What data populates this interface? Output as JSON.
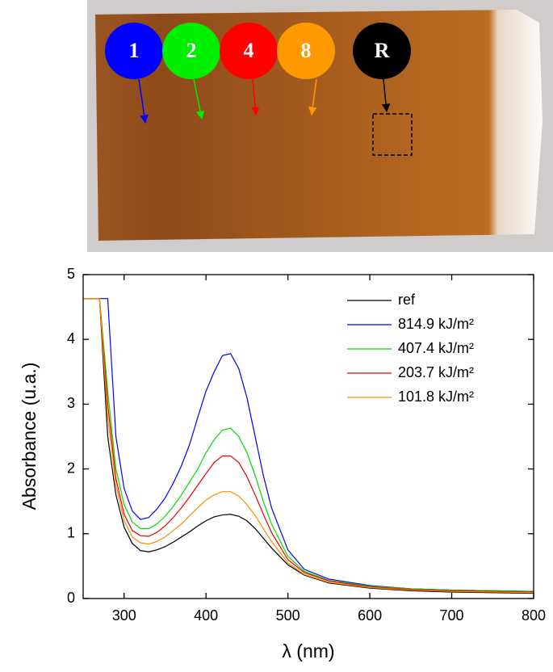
{
  "photo": {
    "markers": [
      "1",
      "2",
      "4",
      "8",
      "R"
    ]
  },
  "chart_data": {
    "type": "line",
    "xlabel": "λ (nm)",
    "ylabel": "Absorbance (u.a.)",
    "x": [
      250,
      270,
      280,
      290,
      300,
      310,
      320,
      330,
      340,
      350,
      360,
      370,
      380,
      390,
      400,
      410,
      420,
      430,
      440,
      450,
      460,
      470,
      480,
      500,
      520,
      550,
      600,
      650,
      700,
      750,
      800
    ],
    "series": [
      {
        "name": "ref",
        "color": "#000000",
        "values": [
          4.63,
          4.63,
          2.5,
          1.6,
          1.1,
          0.85,
          0.74,
          0.72,
          0.75,
          0.8,
          0.87,
          0.95,
          1.03,
          1.12,
          1.2,
          1.26,
          1.29,
          1.3,
          1.27,
          1.2,
          1.08,
          0.93,
          0.78,
          0.52,
          0.36,
          0.24,
          0.16,
          0.12,
          0.1,
          0.09,
          0.08
        ]
      },
      {
        "name": "814.9 kJ/m²",
        "color": "#0000ff",
        "values": [
          4.63,
          4.63,
          4.63,
          2.5,
          1.7,
          1.35,
          1.22,
          1.25,
          1.38,
          1.55,
          1.78,
          2.05,
          2.38,
          2.8,
          3.2,
          3.5,
          3.75,
          3.78,
          3.55,
          3.1,
          2.5,
          1.9,
          1.4,
          0.75,
          0.45,
          0.3,
          0.2,
          0.15,
          0.13,
          0.12,
          0.11
        ]
      },
      {
        "name": "407.4 kJ/m²",
        "color": "#00dd00",
        "values": [
          4.63,
          4.63,
          3.2,
          2.0,
          1.45,
          1.18,
          1.08,
          1.08,
          1.15,
          1.27,
          1.42,
          1.6,
          1.8,
          2.0,
          2.25,
          2.45,
          2.6,
          2.63,
          2.5,
          2.25,
          1.9,
          1.5,
          1.15,
          0.65,
          0.42,
          0.28,
          0.19,
          0.15,
          0.13,
          0.12,
          0.11
        ]
      },
      {
        "name": "203.7 kJ/m²",
        "color": "#ee0000",
        "values": [
          4.63,
          4.63,
          3.0,
          1.85,
          1.3,
          1.05,
          0.97,
          0.96,
          1.02,
          1.12,
          1.25,
          1.4,
          1.57,
          1.75,
          1.93,
          2.1,
          2.2,
          2.2,
          2.1,
          1.88,
          1.6,
          1.3,
          1.02,
          0.6,
          0.4,
          0.27,
          0.18,
          0.14,
          0.12,
          0.11,
          0.1
        ]
      },
      {
        "name": "101.8 kJ/m²",
        "color": "#ff8c00",
        "values": [
          4.63,
          4.63,
          2.8,
          1.75,
          1.2,
          0.95,
          0.86,
          0.84,
          0.88,
          0.95,
          1.05,
          1.15,
          1.28,
          1.4,
          1.52,
          1.6,
          1.65,
          1.65,
          1.58,
          1.45,
          1.28,
          1.08,
          0.88,
          0.55,
          0.37,
          0.25,
          0.17,
          0.13,
          0.11,
          0.1,
          0.09
        ]
      }
    ],
    "xlim": [
      250,
      800
    ],
    "xticks": [
      300,
      400,
      500,
      600,
      700,
      800
    ],
    "ylim": [
      0,
      5
    ],
    "yticks": [
      0,
      1,
      2,
      3,
      4,
      5
    ],
    "legend": "upper right"
  }
}
